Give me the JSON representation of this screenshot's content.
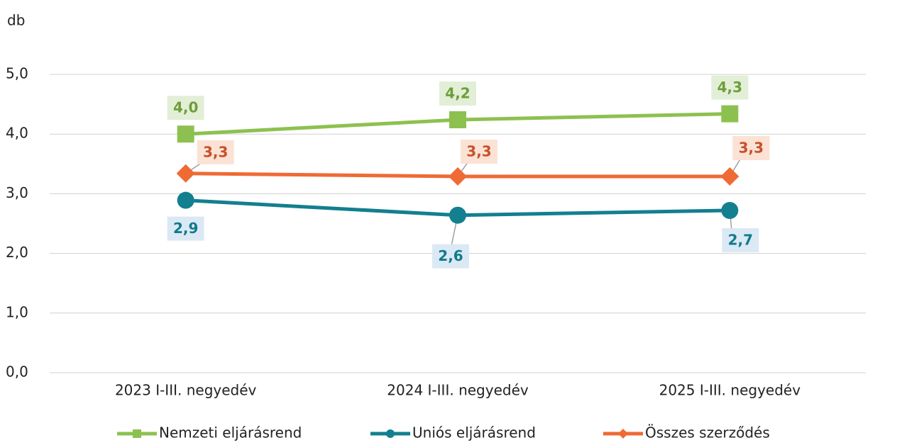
{
  "chart_data": {
    "type": "line",
    "y_label": "db",
    "categories": [
      "2023 I-III. negyedév",
      "2024 I-III. negyedév",
      "2025 I-III. negyedév"
    ],
    "series": [
      {
        "name": "Nemzeti eljárásrend",
        "color": "#8dc14f",
        "marker": "square",
        "values": [
          4.0,
          4.24,
          4.34
        ],
        "value_labels": [
          "4,0",
          "4,2",
          "4,3"
        ]
      },
      {
        "name": "Uniós eljárásrend",
        "color": "#137f8f",
        "marker": "circle",
        "values": [
          2.89,
          2.64,
          2.72
        ],
        "value_labels": [
          "2,9",
          "2,6",
          "2,7"
        ]
      },
      {
        "name": "Összes szerződés",
        "color": "#ef6a35",
        "marker": "diamond",
        "values": [
          3.34,
          3.29,
          3.29
        ],
        "value_labels": [
          "3,3",
          "3,3",
          "3,3"
        ]
      }
    ],
    "ylim": [
      0,
      5
    ],
    "yticks": [
      {
        "value": 0,
        "label": "0,0"
      },
      {
        "value": 1,
        "label": "1,0"
      },
      {
        "value": 2,
        "label": "2,0"
      },
      {
        "value": 3,
        "label": "3,0"
      },
      {
        "value": 4,
        "label": "4,0"
      },
      {
        "value": 5,
        "label": "5,0"
      }
    ],
    "grid": true,
    "legend": "bottom"
  }
}
